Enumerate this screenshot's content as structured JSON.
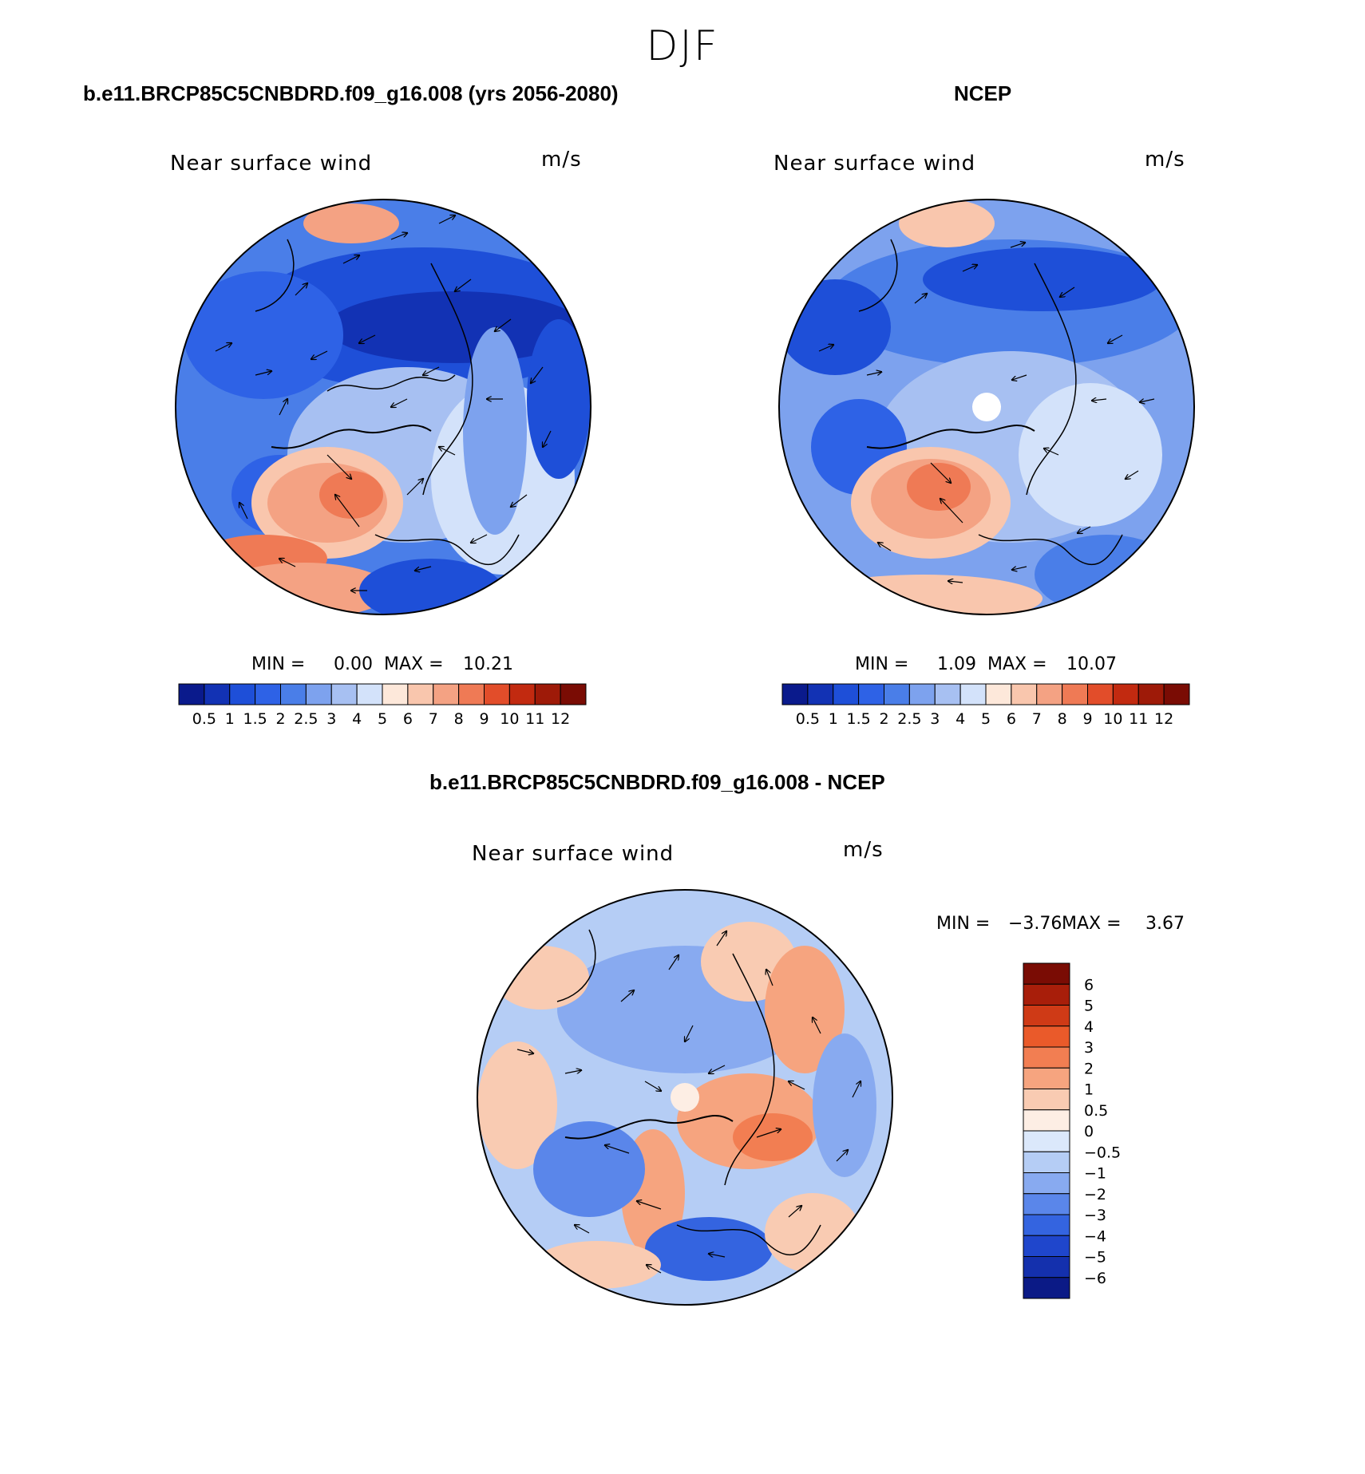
{
  "figure": {
    "season": "DJF"
  },
  "panels": {
    "model": {
      "title": "b.e11.BRCP85C5CNBDRD.f09_g16.008 (yrs 2056-2080)",
      "variable": "Near surface wind",
      "units": "m/s",
      "min_label": "MIN =",
      "min": "0.00",
      "max_label": "MAX =",
      "max": "10.21"
    },
    "obs": {
      "title": "NCEP",
      "variable": "Near surface wind",
      "units": "m/s",
      "min_label": "MIN =",
      "min": "1.09",
      "max_label": "MAX =",
      "max": "10.07"
    },
    "diff": {
      "title": "b.e11.BRCP85C5CNBDRD.f09_g16.008 - NCEP",
      "variable": "Near surface wind",
      "units": "m/s",
      "min_label": "MIN =",
      "min": "−3.76",
      "max_label": "MAX =",
      "max": "3.67"
    }
  },
  "chart_data": [
    {
      "type": "heatmap",
      "projection": "north polar stereographic",
      "title": "b.e11.BRCP85C5CNBDRD.f09_g16.008 (yrs 2056-2080)",
      "subtitle": "Near surface wind",
      "units": "m/s",
      "min": 0.0,
      "max": 10.21,
      "colorbar": {
        "orientation": "horizontal",
        "levels": [
          "0.5",
          "1",
          "1.5",
          "2",
          "2.5",
          "3",
          "4",
          "5",
          "6",
          "7",
          "8",
          "9",
          "10",
          "11",
          "12"
        ],
        "colors": [
          "#0a1a8c",
          "#1232b4",
          "#1e4fd8",
          "#2e62e6",
          "#4a7ee8",
          "#7da2ee",
          "#a7c0f2",
          "#d3e2fa",
          "#fde8da",
          "#f9c6ad",
          "#f4a283",
          "#ef7a55",
          "#e24d2a",
          "#c22a10",
          "#9e1a08",
          "#7a0c04"
        ]
      },
      "overlay": "wind vectors"
    },
    {
      "type": "heatmap",
      "projection": "north polar stereographic",
      "title": "NCEP",
      "subtitle": "Near surface wind",
      "units": "m/s",
      "min": 1.09,
      "max": 10.07,
      "colorbar": {
        "orientation": "horizontal",
        "levels": [
          "0.5",
          "1",
          "1.5",
          "2",
          "2.5",
          "3",
          "4",
          "5",
          "6",
          "7",
          "8",
          "9",
          "10",
          "11",
          "12"
        ],
        "colors": [
          "#0a1a8c",
          "#1232b4",
          "#1e4fd8",
          "#2e62e6",
          "#4a7ee8",
          "#7da2ee",
          "#a7c0f2",
          "#d3e2fa",
          "#fde8da",
          "#f9c6ad",
          "#f4a283",
          "#ef7a55",
          "#e24d2a",
          "#c22a10",
          "#9e1a08",
          "#7a0c04"
        ]
      },
      "overlay": "wind vectors"
    },
    {
      "type": "heatmap",
      "projection": "north polar stereographic",
      "title": "b.e11.BRCP85C5CNBDRD.f09_g16.008 - NCEP",
      "subtitle": "Near surface wind",
      "units": "m/s",
      "min": -3.76,
      "max": 3.67,
      "colorbar": {
        "orientation": "vertical",
        "levels": [
          "6",
          "5",
          "4",
          "3",
          "2",
          "1",
          "0.5",
          "0",
          "−0.5",
          "−1",
          "−2",
          "−3",
          "−4",
          "−5",
          "−6"
        ],
        "colors": [
          "#7a0c04",
          "#a81e0a",
          "#cf3a16",
          "#ea5a2a",
          "#f27e52",
          "#f6a47f",
          "#f9cbb2",
          "#fdeee4",
          "#dbe8fb",
          "#b5cdf5",
          "#88aaf0",
          "#5a86ea",
          "#3464e0",
          "#1f46cc",
          "#1430ad",
          "#0b1a86"
        ]
      },
      "overlay": "wind vectors"
    }
  ]
}
